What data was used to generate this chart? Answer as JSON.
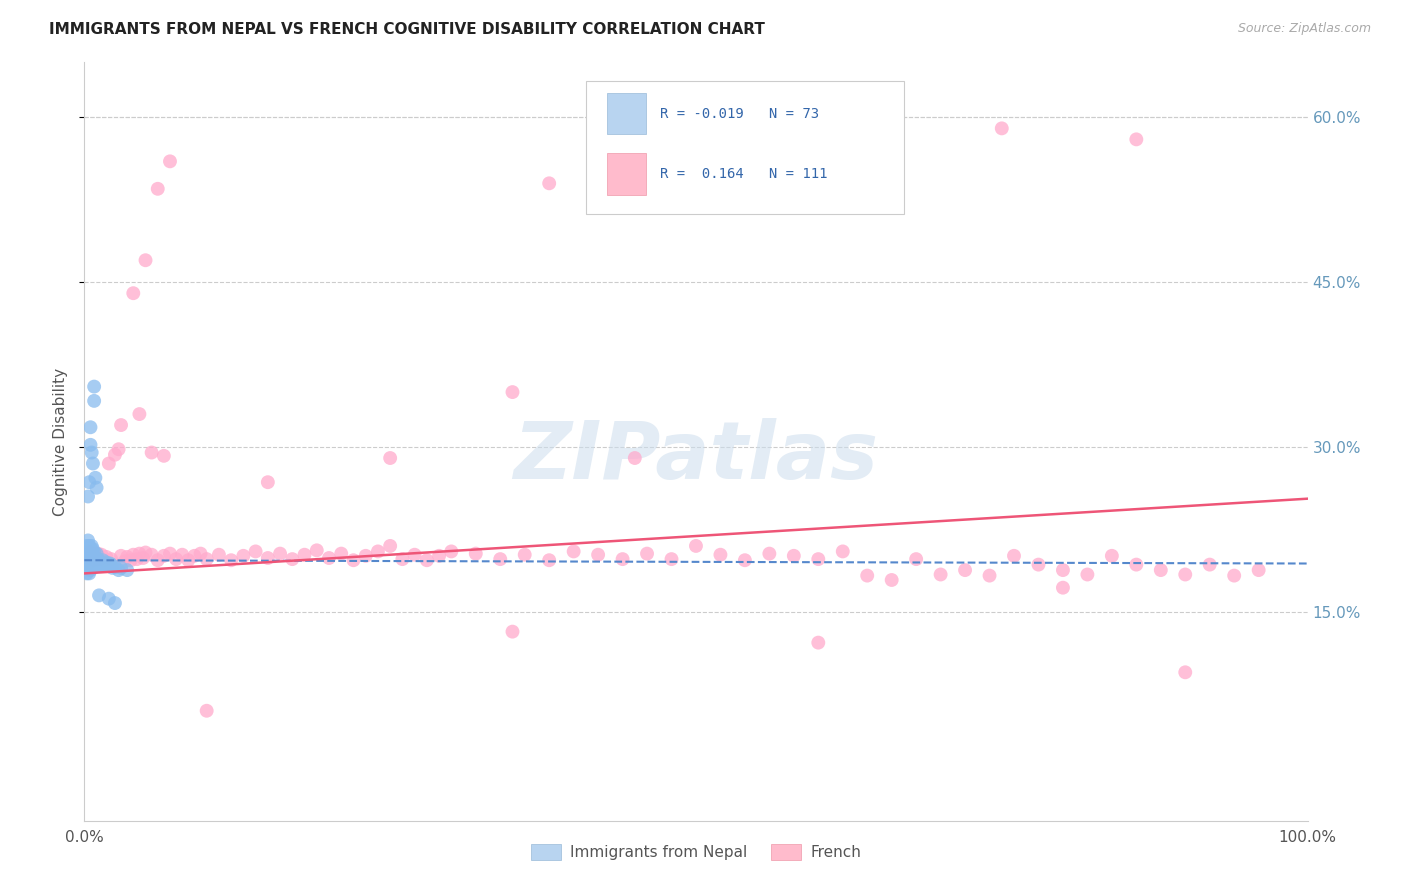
{
  "title": "IMMIGRANTS FROM NEPAL VS FRENCH COGNITIVE DISABILITY CORRELATION CHART",
  "source": "Source: ZipAtlas.com",
  "ylabel": "Cognitive Disability",
  "xlim": [
    0.0,
    1.0
  ],
  "ylim": [
    -0.04,
    0.65
  ],
  "x_ticks": [
    0.0,
    0.2,
    0.4,
    0.6,
    0.8,
    1.0
  ],
  "x_tick_labels": [
    "0.0%",
    "",
    "",
    "",
    "",
    "100.0%"
  ],
  "y_ticks": [
    0.15,
    0.3,
    0.45,
    0.6
  ],
  "y_tick_labels": [
    "15.0%",
    "30.0%",
    "45.0%",
    "60.0%"
  ],
  "nepal_color": "#88bbee",
  "french_color": "#ffaacc",
  "nepal_line_color": "#5588cc",
  "french_line_color": "#ee5577",
  "R_nepal": -0.019,
  "N_nepal": 73,
  "R_french": 0.164,
  "N_french": 111,
  "grid_color": "#cccccc",
  "watermark": "ZIPatlas",
  "nepal_x": [
    0.001,
    0.001,
    0.002,
    0.002,
    0.002,
    0.002,
    0.003,
    0.003,
    0.003,
    0.003,
    0.003,
    0.003,
    0.004,
    0.004,
    0.004,
    0.004,
    0.004,
    0.004,
    0.005,
    0.005,
    0.005,
    0.005,
    0.005,
    0.006,
    0.006,
    0.006,
    0.006,
    0.006,
    0.007,
    0.007,
    0.007,
    0.007,
    0.008,
    0.008,
    0.008,
    0.009,
    0.009,
    0.01,
    0.01,
    0.01,
    0.011,
    0.011,
    0.012,
    0.012,
    0.013,
    0.014,
    0.015,
    0.015,
    0.016,
    0.017,
    0.018,
    0.019,
    0.02,
    0.021,
    0.022,
    0.023,
    0.025,
    0.028,
    0.03,
    0.035,
    0.003,
    0.004,
    0.005,
    0.005,
    0.006,
    0.007,
    0.008,
    0.008,
    0.009,
    0.01,
    0.012,
    0.02,
    0.025
  ],
  "nepal_y": [
    0.195,
    0.2,
    0.185,
    0.195,
    0.205,
    0.21,
    0.19,
    0.195,
    0.198,
    0.202,
    0.208,
    0.215,
    0.185,
    0.19,
    0.195,
    0.2,
    0.205,
    0.21,
    0.188,
    0.192,
    0.197,
    0.203,
    0.208,
    0.19,
    0.195,
    0.2,
    0.205,
    0.21,
    0.192,
    0.197,
    0.202,
    0.207,
    0.193,
    0.198,
    0.204,
    0.191,
    0.196,
    0.192,
    0.197,
    0.203,
    0.193,
    0.198,
    0.192,
    0.197,
    0.193,
    0.194,
    0.193,
    0.197,
    0.192,
    0.193,
    0.195,
    0.193,
    0.192,
    0.194,
    0.193,
    0.19,
    0.191,
    0.188,
    0.19,
    0.188,
    0.255,
    0.268,
    0.302,
    0.318,
    0.295,
    0.285,
    0.342,
    0.355,
    0.272,
    0.263,
    0.165,
    0.162,
    0.158
  ],
  "french_x": [
    0.002,
    0.003,
    0.004,
    0.005,
    0.006,
    0.007,
    0.008,
    0.009,
    0.01,
    0.011,
    0.012,
    0.014,
    0.016,
    0.018,
    0.02,
    0.022,
    0.025,
    0.028,
    0.03,
    0.033,
    0.035,
    0.038,
    0.04,
    0.043,
    0.045,
    0.048,
    0.05,
    0.055,
    0.06,
    0.065,
    0.07,
    0.075,
    0.08,
    0.085,
    0.09,
    0.095,
    0.1,
    0.11,
    0.12,
    0.13,
    0.14,
    0.15,
    0.16,
    0.17,
    0.18,
    0.19,
    0.2,
    0.21,
    0.22,
    0.23,
    0.24,
    0.25,
    0.26,
    0.27,
    0.28,
    0.29,
    0.3,
    0.32,
    0.34,
    0.36,
    0.38,
    0.4,
    0.42,
    0.44,
    0.46,
    0.48,
    0.5,
    0.52,
    0.54,
    0.56,
    0.58,
    0.6,
    0.62,
    0.64,
    0.66,
    0.68,
    0.7,
    0.72,
    0.74,
    0.76,
    0.78,
    0.8,
    0.82,
    0.84,
    0.86,
    0.88,
    0.9,
    0.92,
    0.94,
    0.96,
    0.04,
    0.05,
    0.06,
    0.07,
    0.38,
    0.55,
    0.75,
    0.86,
    0.03,
    0.045,
    0.055,
    0.065,
    0.35,
    0.45,
    0.15,
    0.25,
    0.35,
    0.6,
    0.8,
    0.9,
    0.1
  ],
  "french_y": [
    0.2,
    0.205,
    0.195,
    0.2,
    0.205,
    0.198,
    0.202,
    0.197,
    0.201,
    0.203,
    0.198,
    0.202,
    0.197,
    0.2,
    0.285,
    0.198,
    0.293,
    0.298,
    0.201,
    0.196,
    0.2,
    0.197,
    0.202,
    0.198,
    0.203,
    0.199,
    0.204,
    0.202,
    0.197,
    0.201,
    0.203,
    0.198,
    0.202,
    0.197,
    0.201,
    0.203,
    0.198,
    0.202,
    0.197,
    0.201,
    0.205,
    0.199,
    0.203,
    0.198,
    0.202,
    0.206,
    0.199,
    0.203,
    0.197,
    0.201,
    0.205,
    0.21,
    0.198,
    0.202,
    0.197,
    0.201,
    0.205,
    0.203,
    0.198,
    0.202,
    0.197,
    0.205,
    0.202,
    0.198,
    0.203,
    0.198,
    0.21,
    0.202,
    0.197,
    0.203,
    0.201,
    0.198,
    0.205,
    0.183,
    0.179,
    0.198,
    0.184,
    0.188,
    0.183,
    0.201,
    0.193,
    0.188,
    0.184,
    0.201,
    0.193,
    0.188,
    0.184,
    0.193,
    0.183,
    0.188,
    0.44,
    0.47,
    0.535,
    0.56,
    0.54,
    0.578,
    0.59,
    0.58,
    0.32,
    0.33,
    0.295,
    0.292,
    0.35,
    0.29,
    0.268,
    0.29,
    0.132,
    0.122,
    0.172,
    0.095,
    0.06
  ]
}
